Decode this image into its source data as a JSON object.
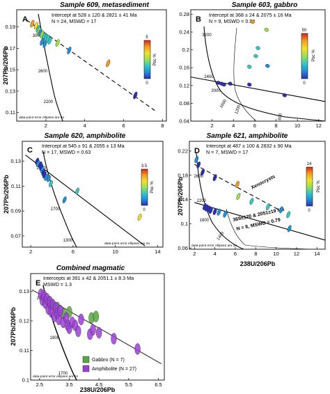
{
  "ylabel": "207Pb/206Pb",
  "xlabel": "238U/206Pb",
  "note": "data-point error ellipses are 2σ",
  "colorbar_label": "Pbc %",
  "palette": [
    "#2b2fb8",
    "#1f8fd8",
    "#35c9c4",
    "#9fe04c",
    "#f2e02a",
    "#f39a1f",
    "#d42520"
  ],
  "chart_data": [
    {
      "type": "scatter",
      "panel": "A",
      "title": "Sample 609, metasediment",
      "stat_lines": [
        "Intercept at 528 ± 120 & 2821 ± 41 Ma",
        "N = 24, MSWD = 17"
      ],
      "xlim": [
        0.5,
        8.2
      ],
      "ylim": [
        0.102,
        0.206
      ],
      "xticks": [
        2,
        4,
        6,
        8
      ],
      "yticks": [
        0.11,
        0.13,
        0.15,
        0.17,
        0.19
      ],
      "concordia_ages": [
        "3000",
        "2600",
        "2200"
      ],
      "colorbar": {
        "min": "0",
        "max": "5"
      },
      "discordia": [
        [
          1.0,
          0.1965
        ],
        [
          7.6,
          0.112
        ]
      ],
      "points": [
        {
          "x": 1.3,
          "y": 0.193,
          "c": 0.9
        },
        {
          "x": 1.5,
          "y": 0.191,
          "c": 0.7
        },
        {
          "x": 1.6,
          "y": 0.188,
          "c": 0.3
        },
        {
          "x": 1.65,
          "y": 0.186,
          "c": 0.6
        },
        {
          "x": 1.7,
          "y": 0.185,
          "c": 0.2
        },
        {
          "x": 1.8,
          "y": 0.183,
          "c": 0.5
        },
        {
          "x": 1.9,
          "y": 0.181,
          "c": 0.3
        },
        {
          "x": 2.0,
          "y": 0.18,
          "c": 0.4
        },
        {
          "x": 1.8,
          "y": 0.176,
          "c": 0.1
        },
        {
          "x": 1.95,
          "y": 0.174,
          "c": 0.2
        },
        {
          "x": 2.1,
          "y": 0.179,
          "c": 0.4
        },
        {
          "x": 2.2,
          "y": 0.177,
          "c": 0.3
        },
        {
          "x": 2.6,
          "y": 0.175,
          "c": 0.55
        },
        {
          "x": 3.2,
          "y": 0.168,
          "c": 0.15
        },
        {
          "x": 5.2,
          "y": 0.156,
          "c": 0.8
        },
        {
          "x": 6.6,
          "y": 0.126,
          "c": 0.05
        }
      ]
    },
    {
      "type": "scatter",
      "panel": "B",
      "title": "Sample 603, gabbro",
      "stat_lines": [
        "Intercept at 368 ± 24 & 2075 ± 16 Ma",
        "N = 9, MSWD = 0.94"
      ],
      "xlim": [
        0,
        12.6
      ],
      "ylim": [
        0.04,
        0.29
      ],
      "xticks": [
        2,
        4,
        6,
        8,
        10,
        12
      ],
      "yticks": [
        0.04,
        0.08,
        0.12,
        0.16,
        0.2,
        0.24,
        0.28
      ],
      "concordia_ages": [
        "3200",
        "2400",
        "2000",
        "1600",
        "1200",
        "800"
      ],
      "colorbar": {
        "min": "0",
        "max": "50"
      },
      "discordia": [
        [
          0,
          0.139
        ],
        [
          12.6,
          0.084
        ]
      ],
      "points": [
        {
          "x": 2.6,
          "y": 0.126,
          "c": 0.05
        },
        {
          "x": 2.9,
          "y": 0.124,
          "c": 0.05
        },
        {
          "x": 3.1,
          "y": 0.122,
          "c": 0.05
        },
        {
          "x": 3.7,
          "y": 0.124,
          "c": 0.05
        },
        {
          "x": 5.5,
          "y": 0.122,
          "c": 0.05
        },
        {
          "x": 8.8,
          "y": 0.098,
          "c": 0.05
        },
        {
          "x": 5.8,
          "y": 0.263,
          "c": 0.85
        },
        {
          "x": 7.1,
          "y": 0.245,
          "c": 0.55
        },
        {
          "x": 6.3,
          "y": 0.204,
          "c": 0.4
        },
        {
          "x": 6.1,
          "y": 0.186,
          "c": 0.28
        },
        {
          "x": 7.2,
          "y": 0.164,
          "c": 0.2
        },
        {
          "x": 5.5,
          "y": 0.162,
          "c": 0.35
        }
      ]
    },
    {
      "type": "scatter",
      "panel": "C",
      "title": "Sample 620, amphibolite",
      "stat_lines": [
        "Intercept at 545 ± 91 & 2055 ± 13 Ma",
        "N = 17, MSWD = 0.63"
      ],
      "xlim": [
        1.2,
        14.5
      ],
      "ylim": [
        0.061,
        0.146
      ],
      "xticks": [
        2,
        6,
        10,
        14
      ],
      "yticks": [
        0.07,
        0.09,
        0.11,
        0.13
      ],
      "concordia_ages": [
        "2100",
        "1700",
        "1300"
      ],
      "colorbar": {
        "min": "0",
        "max": "3.5"
      },
      "discordia": [
        [
          1.5,
          0.135
        ],
        [
          12.8,
          0.062
        ]
      ],
      "points": [
        {
          "x": 2.6,
          "y": 0.13,
          "c": 0.05
        },
        {
          "x": 2.7,
          "y": 0.128,
          "c": 0.1
        },
        {
          "x": 2.9,
          "y": 0.127,
          "c": 0.05
        },
        {
          "x": 3.0,
          "y": 0.125,
          "c": 0.05
        },
        {
          "x": 3.1,
          "y": 0.123,
          "c": 0.1
        },
        {
          "x": 3.2,
          "y": 0.121,
          "c": 0.05
        },
        {
          "x": 3.3,
          "y": 0.119,
          "c": 0.05
        },
        {
          "x": 3.45,
          "y": 0.117,
          "c": 0.15
        },
        {
          "x": 3.7,
          "y": 0.116,
          "c": 0.1
        },
        {
          "x": 3.9,
          "y": 0.112,
          "c": 0.3
        },
        {
          "x": 6.4,
          "y": 0.106,
          "c": 0.3
        },
        {
          "x": 5.2,
          "y": 0.099,
          "c": 0.2
        },
        {
          "x": 12.3,
          "y": 0.085,
          "c": 0.65
        }
      ]
    },
    {
      "type": "scatter",
      "panel": "D",
      "title": "Sample 621, amphibolite",
      "stat_lines": [
        "Intercept at 487 ± 100 & 2832 ± 90 Ma",
        "N = 7, MSWD = 17"
      ],
      "lower_stat_lines": [
        "369±120 & 2051±19 Ma",
        "N = 8, MSWD = 0.79"
      ],
      "xenocrysts_label": "Xenocrysts",
      "xlim": [
        1.5,
        14.8
      ],
      "ylim": [
        0.058,
        0.236
      ],
      "xticks": [
        2,
        4,
        6,
        8,
        10,
        12,
        14
      ],
      "yticks": [
        0.06,
        0.1,
        0.14,
        0.18,
        0.22
      ],
      "concordia_ages": [
        "2600",
        "2200",
        "1800",
        "1400"
      ],
      "colorbar": {
        "min": "0",
        "max": "14"
      },
      "discordia_upper": [
        [
          2.0,
          0.198
        ],
        [
          10.5,
          0.121
        ]
      ],
      "discordia_lower": [
        [
          2.0,
          0.135
        ],
        [
          14.8,
          0.073
        ]
      ],
      "points": [
        {
          "x": 2.2,
          "y": 0.206,
          "c": 0.1
        },
        {
          "x": 2.4,
          "y": 0.197,
          "c": 0.05
        },
        {
          "x": 2.8,
          "y": 0.185,
          "c": 0.05
        },
        {
          "x": 4.0,
          "y": 0.176,
          "c": 0.05
        },
        {
          "x": 6.2,
          "y": 0.165,
          "c": 0.75
        },
        {
          "x": 6.3,
          "y": 0.145,
          "c": 0.55
        },
        {
          "x": 7.6,
          "y": 0.137,
          "c": 0.35
        },
        {
          "x": 9.2,
          "y": 0.128,
          "c": 0.3
        },
        {
          "x": 10.5,
          "y": 0.123,
          "c": 0.2
        },
        {
          "x": 11.2,
          "y": 0.115,
          "c": 0.25
        },
        {
          "x": 3.0,
          "y": 0.128,
          "c": 0.05
        },
        {
          "x": 3.2,
          "y": 0.126,
          "c": 0.05
        },
        {
          "x": 3.4,
          "y": 0.124,
          "c": 0.05
        },
        {
          "x": 3.6,
          "y": 0.122,
          "c": 0.05
        },
        {
          "x": 4.0,
          "y": 0.12,
          "c": 0.05
        },
        {
          "x": 4.4,
          "y": 0.119,
          "c": 0.1
        },
        {
          "x": 5.0,
          "y": 0.116,
          "c": 0.1
        },
        {
          "x": 11.3,
          "y": 0.092,
          "c": 0.1
        }
      ]
    },
    {
      "type": "scatter",
      "panel": "E",
      "title": "Combined magmatic",
      "stat_lines": [
        "Intercepts at 391 ± 42 & 2051.1 ± 8.3 Ma",
        "MSWD = 1.3"
      ],
      "xlim": [
        2.2,
        6.7
      ],
      "ylim": [
        0.1,
        0.136
      ],
      "xticks": [
        2.5,
        3.5,
        4.5,
        5.5,
        6.5
      ],
      "yticks": [
        0.1,
        0.11,
        0.12,
        0.13
      ],
      "concordia_ages": [
        "2100",
        "1900",
        "1700"
      ],
      "discordia": [
        [
          2.25,
          0.1305
        ],
        [
          6.6,
          0.1055
        ]
      ],
      "legend": [
        {
          "name": "Gabbro (N = 7)",
          "color": "#58a83e"
        },
        {
          "name": "Amphibolite (N = 27)",
          "color": "#9b3fd6"
        }
      ],
      "series": [
        {
          "name": "Gabbro (N = 7)",
          "points": [
            {
              "x": 2.8,
              "y": 0.1265
            },
            {
              "x": 2.9,
              "y": 0.1255
            },
            {
              "x": 3.1,
              "y": 0.1245
            },
            {
              "x": 3.3,
              "y": 0.1225
            },
            {
              "x": 3.5,
              "y": 0.123
            },
            {
              "x": 4.25,
              "y": 0.121
            },
            {
              "x": 4.4,
              "y": 0.1215
            }
          ]
        },
        {
          "name": "Amphibolite (N = 27)",
          "points": [
            {
              "x": 2.55,
              "y": 0.129
            },
            {
              "x": 2.6,
              "y": 0.127
            },
            {
              "x": 2.65,
              "y": 0.1285
            },
            {
              "x": 2.7,
              "y": 0.126
            },
            {
              "x": 2.75,
              "y": 0.1275
            },
            {
              "x": 2.8,
              "y": 0.124
            },
            {
              "x": 2.85,
              "y": 0.1265
            },
            {
              "x": 2.9,
              "y": 0.123
            },
            {
              "x": 2.95,
              "y": 0.1255
            },
            {
              "x": 3.0,
              "y": 0.1215
            },
            {
              "x": 3.05,
              "y": 0.1245
            },
            {
              "x": 3.1,
              "y": 0.1225
            },
            {
              "x": 3.15,
              "y": 0.1205
            },
            {
              "x": 3.2,
              "y": 0.1235
            },
            {
              "x": 3.3,
              "y": 0.1195
            },
            {
              "x": 3.4,
              "y": 0.121
            },
            {
              "x": 3.45,
              "y": 0.1185
            },
            {
              "x": 3.5,
              "y": 0.1175
            },
            {
              "x": 3.6,
              "y": 0.1195
            },
            {
              "x": 3.7,
              "y": 0.1185
            },
            {
              "x": 3.8,
              "y": 0.1165
            },
            {
              "x": 3.9,
              "y": 0.1205
            },
            {
              "x": 4.2,
              "y": 0.1155
            },
            {
              "x": 4.3,
              "y": 0.117
            },
            {
              "x": 4.5,
              "y": 0.116
            },
            {
              "x": 5.0,
              "y": 0.114
            },
            {
              "x": 5.8,
              "y": 0.1105
            }
          ]
        }
      ]
    }
  ]
}
